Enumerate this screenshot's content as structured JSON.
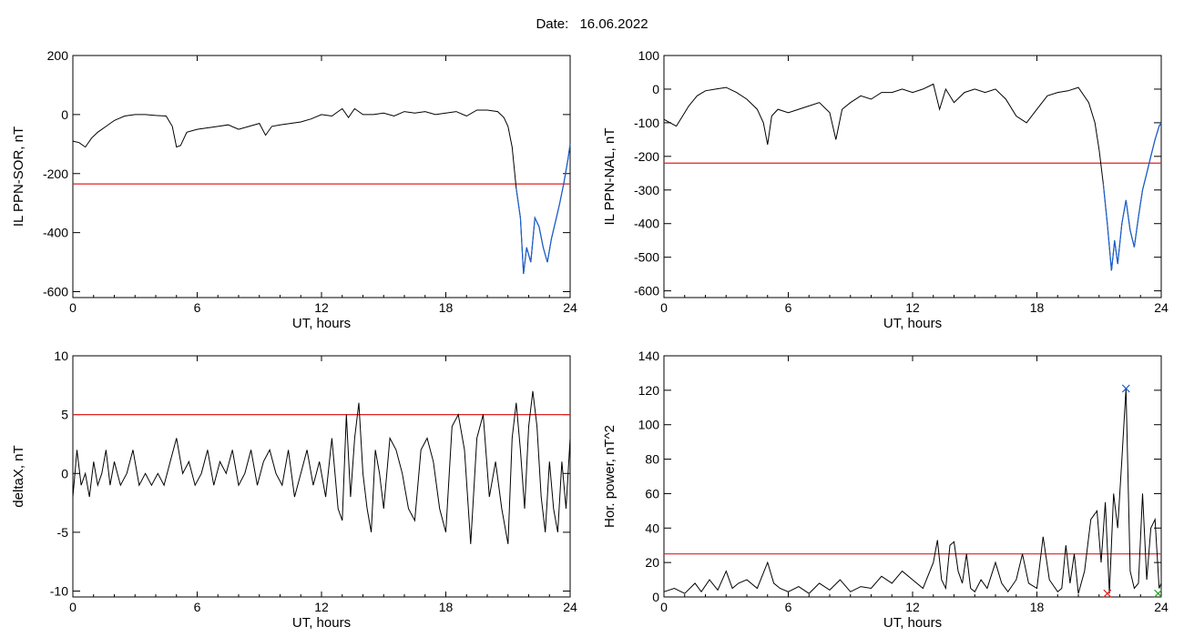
{
  "header": {
    "date_label": "Date:",
    "date_value": "16.06.2022"
  },
  "colors": {
    "threshold": "#e02020",
    "highlight": "#1a5fd0",
    "series": "#000000",
    "marker_red": "#e02020",
    "marker_blue": "#1a5fd0",
    "marker_green": "#20a020"
  },
  "chart_data": [
    {
      "type": "line",
      "ylabel": "IL PPN-SOR, nT",
      "xlabel": "UT, hours",
      "xlim": [
        0,
        24
      ],
      "ylim": [
        -620,
        200
      ],
      "xticks": [
        0,
        6,
        12,
        18,
        24
      ],
      "yticks": [
        -600,
        -400,
        -200,
        0,
        200
      ],
      "threshold": -235,
      "highlight_range": [
        21.3,
        24
      ],
      "series": [
        {
          "x": [
            0,
            0.3,
            0.6,
            0.9,
            1.2,
            1.6,
            2.0,
            2.5,
            3.0,
            3.5,
            4.0,
            4.5,
            4.8,
            5.0,
            5.2,
            5.5,
            6.0,
            6.5,
            7.0,
            7.5,
            8.0,
            8.5,
            9.0,
            9.3,
            9.6,
            10.0,
            10.5,
            11.0,
            11.5,
            12.0,
            12.5,
            12.8,
            13.0,
            13.3,
            13.6,
            14.0,
            14.5,
            15.0,
            15.5,
            16.0,
            16.5,
            17.0,
            17.5,
            18.0,
            18.5,
            19.0,
            19.5,
            20.0,
            20.5,
            20.8,
            21.0,
            21.2,
            21.4,
            21.6,
            21.75,
            21.9,
            22.1,
            22.3,
            22.5,
            22.7,
            22.9,
            23.1,
            23.3,
            23.5,
            23.7,
            23.9,
            24.0
          ],
          "y": [
            -90,
            -95,
            -110,
            -80,
            -60,
            -40,
            -20,
            -5,
            0,
            0,
            -3,
            -5,
            -40,
            -110,
            -105,
            -60,
            -50,
            -45,
            -40,
            -35,
            -50,
            -40,
            -30,
            -70,
            -40,
            -35,
            -30,
            -25,
            -15,
            0,
            -5,
            10,
            20,
            -10,
            20,
            0,
            0,
            5,
            -5,
            10,
            5,
            10,
            0,
            5,
            10,
            -5,
            15,
            15,
            10,
            -10,
            -40,
            -110,
            -250,
            -350,
            -540,
            -450,
            -500,
            -350,
            -380,
            -450,
            -500,
            -420,
            -360,
            -300,
            -230,
            -150,
            -100
          ]
        }
      ]
    },
    {
      "type": "line",
      "ylabel": "IL PPN-NAL, nT",
      "xlabel": "UT, hours",
      "xlim": [
        0,
        24
      ],
      "ylim": [
        -620,
        100
      ],
      "xticks": [
        0,
        6,
        12,
        18,
        24
      ],
      "yticks": [
        -600,
        -500,
        -400,
        -300,
        -200,
        -100,
        0,
        100
      ],
      "threshold": -220,
      "highlight_range": [
        21.2,
        24
      ],
      "series": [
        {
          "x": [
            0,
            0.3,
            0.6,
            0.9,
            1.2,
            1.6,
            2.0,
            2.5,
            3.0,
            3.5,
            4.0,
            4.5,
            4.8,
            5.0,
            5.2,
            5.5,
            6.0,
            6.5,
            7.0,
            7.5,
            8.0,
            8.3,
            8.6,
            9.0,
            9.5,
            10.0,
            10.5,
            11.0,
            11.5,
            12.0,
            12.5,
            13.0,
            13.3,
            13.6,
            14.0,
            14.5,
            15.0,
            15.5,
            16.0,
            16.5,
            17.0,
            17.5,
            18.0,
            18.5,
            19.0,
            19.5,
            20.0,
            20.5,
            20.8,
            21.0,
            21.2,
            21.4,
            21.6,
            21.75,
            21.9,
            22.1,
            22.3,
            22.5,
            22.7,
            22.9,
            23.1,
            23.3,
            23.5,
            23.7,
            23.9,
            24.0
          ],
          "y": [
            -90,
            -100,
            -110,
            -80,
            -50,
            -20,
            -5,
            0,
            5,
            -10,
            -30,
            -60,
            -100,
            -165,
            -80,
            -60,
            -70,
            -60,
            -50,
            -40,
            -70,
            -150,
            -60,
            -40,
            -20,
            -30,
            -10,
            -10,
            0,
            -10,
            0,
            15,
            -60,
            0,
            -40,
            -10,
            0,
            -10,
            0,
            -30,
            -80,
            -100,
            -60,
            -20,
            -10,
            -5,
            5,
            -40,
            -100,
            -180,
            -280,
            -400,
            -540,
            -450,
            -520,
            -400,
            -330,
            -420,
            -470,
            -380,
            -300,
            -250,
            -200,
            -150,
            -110,
            -100
          ]
        }
      ]
    },
    {
      "type": "line",
      "ylabel": "deltaX, nT",
      "xlabel": "UT, hours",
      "xlim": [
        0,
        24
      ],
      "ylim": [
        -10.5,
        10
      ],
      "xticks": [
        0,
        6,
        12,
        18,
        24
      ],
      "yticks": [
        -10,
        -5,
        0,
        5,
        10
      ],
      "threshold": 5,
      "series": [
        {
          "x": [
            0,
            0.2,
            0.4,
            0.6,
            0.8,
            1.0,
            1.2,
            1.4,
            1.6,
            1.8,
            2.0,
            2.3,
            2.6,
            2.9,
            3.2,
            3.5,
            3.8,
            4.1,
            4.4,
            4.7,
            5.0,
            5.3,
            5.6,
            5.9,
            6.2,
            6.5,
            6.8,
            7.1,
            7.4,
            7.7,
            8.0,
            8.3,
            8.6,
            8.9,
            9.2,
            9.5,
            9.8,
            10.1,
            10.4,
            10.7,
            11.0,
            11.3,
            11.6,
            11.9,
            12.2,
            12.5,
            12.8,
            13.0,
            13.2,
            13.4,
            13.6,
            13.8,
            14.0,
            14.2,
            14.4,
            14.6,
            14.8,
            15.0,
            15.3,
            15.6,
            15.9,
            16.2,
            16.5,
            16.8,
            17.1,
            17.4,
            17.7,
            18.0,
            18.3,
            18.6,
            18.9,
            19.2,
            19.5,
            19.8,
            20.1,
            20.4,
            20.7,
            21.0,
            21.2,
            21.4,
            21.6,
            21.8,
            22.0,
            22.2,
            22.4,
            22.6,
            22.8,
            23.0,
            23.2,
            23.4,
            23.6,
            23.8,
            24.0
          ],
          "y": [
            -2,
            2,
            -1,
            0,
            -2,
            1,
            -1,
            0,
            2,
            -1,
            1,
            -1,
            0,
            2,
            -1,
            0,
            -1,
            0,
            -1,
            1,
            3,
            0,
            1,
            -1,
            0,
            2,
            -1,
            1,
            0,
            2,
            -1,
            0,
            2,
            -1,
            1,
            2,
            0,
            -1,
            2,
            -2,
            0,
            2,
            -1,
            1,
            -2,
            3,
            -3,
            -4,
            5,
            -2,
            3,
            6,
            0,
            -3,
            -5,
            2,
            0,
            -3,
            3,
            2,
            0,
            -3,
            -4,
            2,
            3,
            1,
            -3,
            -5,
            4,
            5,
            2,
            -6,
            3,
            5,
            -2,
            1,
            -3,
            -6,
            3,
            6,
            2,
            -3,
            4,
            7,
            4,
            -2,
            -5,
            1,
            -3,
            -5,
            1,
            -3,
            3
          ]
        }
      ]
    },
    {
      "type": "line",
      "ylabel": "Hor. power, nT^2",
      "xlabel": "UT, hours",
      "xlim": [
        0,
        24
      ],
      "ylim": [
        0,
        140
      ],
      "xticks": [
        0,
        6,
        12,
        18,
        24
      ],
      "yticks": [
        0,
        20,
        40,
        60,
        80,
        100,
        120,
        140
      ],
      "threshold": 25,
      "markers": [
        {
          "x": 21.4,
          "y": 2,
          "color": "#e02020"
        },
        {
          "x": 22.3,
          "y": 121,
          "color": "#1a5fd0"
        },
        {
          "x": 23.85,
          "y": 2,
          "color": "#20a020"
        }
      ],
      "series": [
        {
          "x": [
            0,
            0.5,
            1.0,
            1.5,
            1.8,
            2.2,
            2.6,
            3.0,
            3.3,
            3.6,
            4.0,
            4.5,
            5.0,
            5.3,
            5.6,
            6.0,
            6.5,
            7.0,
            7.5,
            8.0,
            8.5,
            9.0,
            9.5,
            10.0,
            10.5,
            11.0,
            11.5,
            12.0,
            12.5,
            13.0,
            13.2,
            13.4,
            13.6,
            13.8,
            14.0,
            14.2,
            14.4,
            14.6,
            14.8,
            15.0,
            15.3,
            15.6,
            16.0,
            16.3,
            16.6,
            17.0,
            17.3,
            17.6,
            18.0,
            18.3,
            18.6,
            19.0,
            19.2,
            19.4,
            19.6,
            19.8,
            20.0,
            20.3,
            20.6,
            20.9,
            21.1,
            21.3,
            21.5,
            21.7,
            21.9,
            22.1,
            22.3,
            22.5,
            22.7,
            22.9,
            23.1,
            23.3,
            23.5,
            23.7,
            23.9,
            24.0
          ],
          "y": [
            3,
            5,
            2,
            8,
            3,
            10,
            4,
            15,
            5,
            8,
            10,
            5,
            20,
            8,
            5,
            3,
            6,
            2,
            8,
            4,
            10,
            3,
            6,
            5,
            12,
            8,
            15,
            10,
            5,
            20,
            33,
            10,
            5,
            30,
            32,
            15,
            8,
            25,
            5,
            3,
            10,
            5,
            20,
            8,
            3,
            10,
            25,
            8,
            5,
            35,
            10,
            3,
            5,
            30,
            8,
            25,
            2,
            15,
            45,
            50,
            20,
            55,
            2,
            60,
            40,
            80,
            121,
            15,
            5,
            8,
            60,
            10,
            40,
            45,
            5,
            8
          ]
        }
      ]
    }
  ]
}
